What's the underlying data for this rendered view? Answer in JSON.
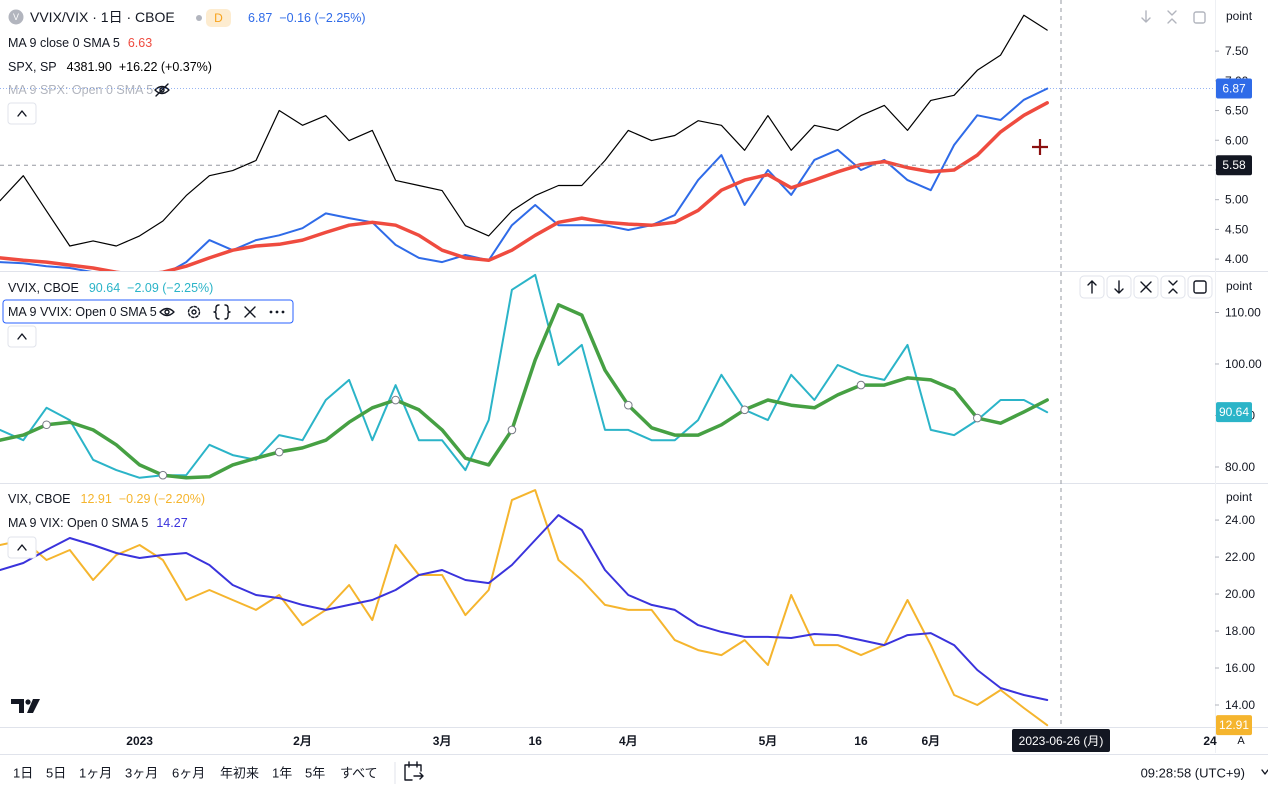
{
  "time_axis": {
    "categories": [
      null,
      null,
      null,
      null,
      null,
      null,
      "2023",
      null,
      null,
      null,
      null,
      null,
      null,
      "2月",
      null,
      null,
      null,
      null,
      null,
      "3月",
      null,
      null,
      null,
      "16",
      null,
      null,
      null,
      "4月",
      null,
      null,
      null,
      null,
      null,
      "5月",
      null,
      null,
      null,
      "16",
      null,
      null,
      "6月",
      null,
      null,
      null,
      null,
      null,
      null,
      null,
      null,
      null,
      null,
      null,
      "24"
    ]
  },
  "chart_data": [
    {
      "type": "line",
      "logo": "V",
      "badge": "D",
      "y_unit": "point",
      "ylim": [
        3.8,
        8.36
      ],
      "yticks": [
        {
          "value": 4,
          "label": "4.00"
        },
        {
          "value": 4.5,
          "label": "4.50"
        },
        {
          "value": 5,
          "label": "5.00"
        },
        {
          "value": 5.5,
          "label": "5.50"
        },
        {
          "value": 6,
          "label": "6.00"
        },
        {
          "value": 6.5,
          "label": "6.50"
        },
        {
          "value": 7,
          "label": "7.00"
        },
        {
          "value": 7.5,
          "label": "7.50"
        }
      ],
      "y2lim": [
        3765,
        4459
      ],
      "crosshair": {
        "price": 5.58,
        "date": "2023-06-26 (月)"
      },
      "series": [
        {
          "name": "VVIX/VIX · 1日 · CBOE",
          "last": "6.87",
          "change": "−0.16 (−2.25%)",
          "color": "#2f6be8",
          "width": 2,
          "price_label": true,
          "price_line": true,
          "values": [
            3.95,
            3.93,
            3.88,
            3.85,
            3.78,
            3.73,
            3.68,
            3.73,
            3.95,
            4.32,
            4.15,
            4.32,
            4.4,
            4.52,
            4.77,
            4.69,
            4.62,
            4.24,
            4.02,
            3.95,
            4.07,
            3.98,
            4.57,
            4.91,
            4.57,
            4.57,
            4.57,
            4.49,
            4.57,
            4.74,
            5.33,
            5.75,
            4.91,
            5.5,
            5.08,
            5.67,
            5.84,
            5.5,
            5.67,
            5.33,
            5.16,
            5.92,
            6.42,
            6.34,
            6.68,
            6.87,
            null,
            null,
            null,
            null,
            null,
            null,
            null
          ]
        },
        {
          "name": "MA 9 close 0 SMA 5",
          "last": "6.63",
          "color": "#ef4b3f",
          "width": 3.5,
          "values": [
            4.02,
            3.98,
            3.95,
            3.9,
            3.85,
            3.78,
            3.73,
            3.78,
            3.88,
            4.02,
            4.15,
            4.22,
            4.25,
            4.32,
            4.45,
            4.57,
            4.62,
            4.57,
            4.4,
            4.15,
            4.02,
            3.98,
            4.15,
            4.4,
            4.62,
            4.69,
            4.62,
            4.59,
            4.57,
            4.62,
            4.82,
            5.16,
            5.33,
            5.42,
            5.2,
            5.33,
            5.47,
            5.59,
            5.64,
            5.54,
            5.47,
            5.5,
            5.75,
            6.14,
            6.42,
            6.63,
            null,
            null,
            null,
            null,
            null,
            null,
            null
          ]
        },
        {
          "name": "SPX, SP",
          "last": "4381.90",
          "change": "+16.22 (+0.37%)",
          "color": "#000000",
          "width": 1.2,
          "axis": "y2",
          "values": [
            3945,
            4009,
            3919,
            3829,
            3842,
            3829,
            3855,
            3893,
            3958,
            4009,
            4022,
            4048,
            4176,
            4138,
            4163,
            4099,
            4125,
            3997,
            3984,
            3971,
            3881,
            3855,
            3919,
            3958,
            3984,
            3984,
            4048,
            4125,
            4099,
            4112,
            4150,
            4138,
            4074,
            4163,
            4074,
            4138,
            4125,
            4163,
            4189,
            4125,
            4202,
            4215,
            4279,
            4318,
            4420,
            4381.9,
            null,
            null,
            null,
            null,
            null,
            null,
            null
          ]
        }
      ],
      "hidden_series": [
        {
          "name": "MA 9 SPX: Open 0 SMA 5"
        }
      ]
    },
    {
      "type": "line",
      "y_unit": "point",
      "ylim": [
        76.89,
        117.86
      ],
      "yticks": [
        {
          "value": 80,
          "label": "80.00"
        },
        {
          "value": 90,
          "label": "90.00"
        },
        {
          "value": 100,
          "label": "100.00"
        },
        {
          "value": 110,
          "label": "110.00"
        }
      ],
      "series": [
        {
          "name": "VVIX, CBOE",
          "last": "90.64",
          "change": "−2.09 (−2.25%)",
          "color": "#2bb4c8",
          "width": 2,
          "price_label": true,
          "values": [
            87.2,
            85.2,
            91.5,
            89.1,
            81.4,
            79.4,
            77.9,
            78.4,
            78.4,
            84.3,
            82.3,
            81.4,
            86.2,
            85.2,
            93.0,
            96.9,
            85.2,
            95.9,
            85.2,
            85.2,
            79.4,
            89.1,
            114.4,
            117.3,
            99.8,
            103.7,
            87.2,
            87.2,
            85.2,
            85.2,
            89.1,
            97.9,
            91.1,
            89.1,
            97.9,
            93.0,
            99.8,
            97.9,
            96.9,
            103.7,
            87.2,
            86.2,
            89.1,
            93.0,
            93.0,
            90.64,
            null,
            null,
            null,
            null,
            null,
            null,
            null
          ]
        },
        {
          "name": "MA 9 VVIX: Open 0 SMA 5",
          "color": "#46a043",
          "width": 3.5,
          "markers": true,
          "values": [
            85.2,
            86.2,
            88.2,
            88.7,
            87.2,
            84.3,
            80.4,
            78.4,
            77.9,
            78.1,
            80.4,
            81.7,
            82.9,
            83.7,
            85.2,
            88.7,
            91.5,
            93.0,
            91.1,
            87.2,
            81.7,
            80.4,
            87.2,
            100.8,
            111.5,
            109.5,
            98.8,
            92.0,
            87.6,
            86.2,
            86.2,
            88.2,
            91.1,
            93.0,
            92.0,
            91.5,
            94.0,
            95.9,
            95.9,
            97.3,
            96.9,
            95.0,
            89.5,
            88.5,
            90.7,
            93.0,
            null,
            null,
            null,
            null,
            null,
            null,
            null
          ]
        }
      ]
    },
    {
      "type": "line",
      "y_unit": "point",
      "ylim": [
        12.81,
        25.95
      ],
      "yticks": [
        {
          "value": 14,
          "label": "14.00"
        },
        {
          "value": 16,
          "label": "16.00"
        },
        {
          "value": 18,
          "label": "18.00"
        },
        {
          "value": 20,
          "label": "20.00"
        },
        {
          "value": 22,
          "label": "22.00"
        },
        {
          "value": 24,
          "label": "24.00"
        }
      ],
      "series": [
        {
          "name": "VIX, CBOE",
          "last": "12.91",
          "change": "−0.29 (−2.20%)",
          "color": "#f5b52e",
          "width": 2,
          "price_label": true,
          "values": [
            22.65,
            22.92,
            21.84,
            22.38,
            20.76,
            22.11,
            22.65,
            21.84,
            19.68,
            20.22,
            19.68,
            19.14,
            19.95,
            18.32,
            19.14,
            20.49,
            18.59,
            22.65,
            21.03,
            21.03,
            18.86,
            20.22,
            25.08,
            25.62,
            21.84,
            20.76,
            19.41,
            19.14,
            19.14,
            17.51,
            16.97,
            16.7,
            17.51,
            16.16,
            19.95,
            17.24,
            17.24,
            16.7,
            17.24,
            19.68,
            17.24,
            14.54,
            14.0,
            14.81,
            13.84,
            12.91,
            null,
            null,
            null,
            null,
            null,
            null,
            null
          ]
        },
        {
          "name": "MA 9 VIX: Open 0 SMA 5",
          "last": "14.27",
          "color": "#3a33dc",
          "width": 2,
          "values": [
            21.3,
            21.68,
            22.38,
            23.03,
            22.65,
            22.22,
            21.95,
            22.11,
            22.22,
            21.57,
            20.49,
            19.95,
            19.78,
            19.41,
            19.14,
            19.41,
            19.68,
            20.22,
            21.03,
            21.3,
            20.76,
            20.59,
            21.57,
            22.92,
            24.27,
            23.46,
            21.3,
            19.95,
            19.41,
            19.14,
            18.32,
            17.95,
            17.68,
            17.68,
            17.62,
            17.84,
            17.78,
            17.51,
            17.24,
            17.78,
            17.89,
            17.24,
            15.89,
            14.92,
            14.54,
            14.27,
            null,
            null,
            null,
            null,
            null,
            null,
            null
          ]
        }
      ]
    }
  ],
  "toolbar": {
    "ranges": [
      "1日",
      "5日",
      "1ヶ月",
      "3ヶ月",
      "6ヶ月",
      "年初来",
      "1年",
      "5年",
      "すべて"
    ],
    "clock": "09:28:58 (UTC+9)",
    "auto": "A"
  }
}
